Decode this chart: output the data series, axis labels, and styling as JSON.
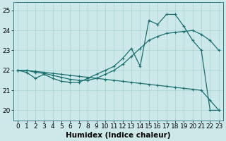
{
  "xlabel": "Humidex (Indice chaleur)",
  "bg_color": "#cce8e8",
  "line_color": "#1a7070",
  "xlim": [
    -0.5,
    23.5
  ],
  "ylim": [
    19.5,
    25.4
  ],
  "yticks": [
    20,
    21,
    22,
    23,
    24,
    25
  ],
  "xticks": [
    0,
    1,
    2,
    3,
    4,
    5,
    6,
    7,
    8,
    9,
    10,
    11,
    12,
    13,
    14,
    15,
    16,
    17,
    18,
    19,
    20,
    21,
    22,
    23
  ],
  "line1_y": [
    22.0,
    21.9,
    21.6,
    21.8,
    21.6,
    21.45,
    21.4,
    21.4,
    21.6,
    21.8,
    22.0,
    22.2,
    22.6,
    23.1,
    22.2,
    24.5,
    24.3,
    24.8,
    24.8,
    24.2,
    23.5,
    23.0,
    20.0,
    20.0
  ],
  "line2_y": [
    22.0,
    22.0,
    21.9,
    21.85,
    21.75,
    21.65,
    21.55,
    21.5,
    21.5,
    21.6,
    21.8,
    22.0,
    22.3,
    22.7,
    23.1,
    23.5,
    23.7,
    23.85,
    23.9,
    23.95,
    24.0,
    23.8,
    23.5,
    23.0
  ],
  "line3_y": [
    22.0,
    22.0,
    21.95,
    21.9,
    21.85,
    21.8,
    21.75,
    21.7,
    21.65,
    21.6,
    21.55,
    21.5,
    21.45,
    21.4,
    21.35,
    21.3,
    21.25,
    21.2,
    21.15,
    21.1,
    21.05,
    21.0,
    20.5,
    20.0
  ],
  "grid_color": "#a8d4d4",
  "label_fontsize": 7.5,
  "tick_fontsize": 6.5
}
